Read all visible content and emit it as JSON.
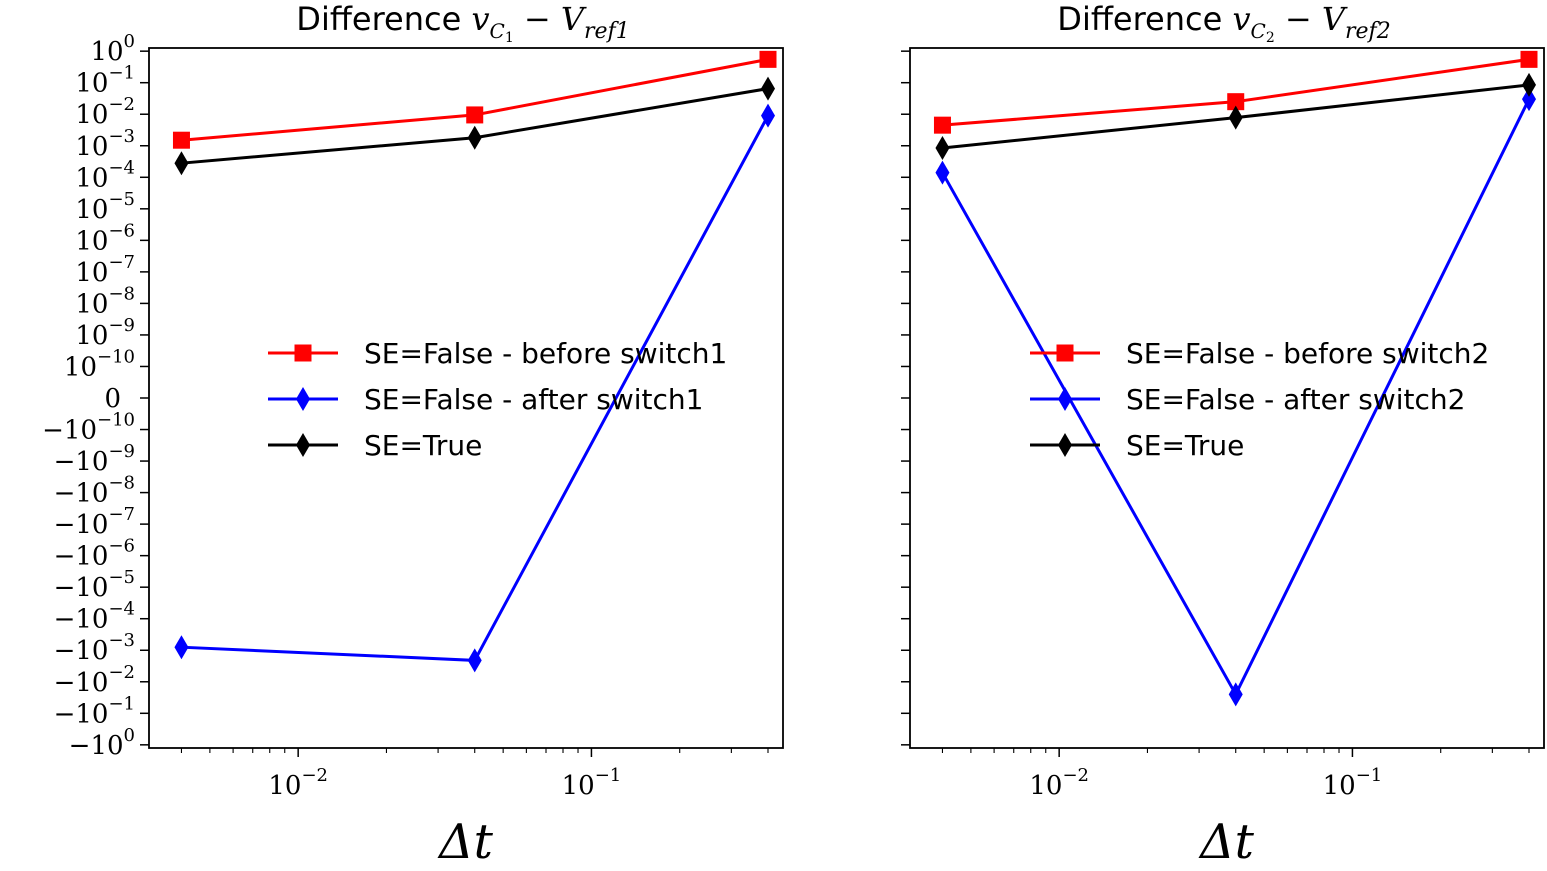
{
  "chart_data": [
    {
      "type": "line",
      "title_prefix": "Difference",
      "title_math": {
        "v": "v",
        "vsub": "C",
        "vsub2": "1",
        "minus": "−",
        "V": "V",
        "Vsub": "ref1"
      },
      "xlabel": "Δt",
      "x_scale": "log",
      "y_scale": "symlog",
      "y_linthresh": 1e-10,
      "xlim": [
        0.0031,
        0.45
      ],
      "ylim": [
        -1.26,
        1.26
      ],
      "x_ticks": [
        {
          "value": 0.01,
          "base": "10",
          "exp": "−2"
        },
        {
          "value": 0.1,
          "base": "10",
          "exp": "−1"
        }
      ],
      "y_ticks_pos": [
        {
          "label": "10",
          "exp": "0"
        },
        {
          "label": "10",
          "exp": "−1"
        },
        {
          "label": "10",
          "exp": "−2"
        },
        {
          "label": "10",
          "exp": "−3"
        },
        {
          "label": "10",
          "exp": "−4"
        },
        {
          "label": "10",
          "exp": "−5"
        },
        {
          "label": "10",
          "exp": "−6"
        },
        {
          "label": "10",
          "exp": "−7"
        },
        {
          "label": "10",
          "exp": "−8"
        },
        {
          "label": "10",
          "exp": "−9"
        },
        {
          "label": "10",
          "exp": "−10"
        }
      ],
      "y_tick_zero": "0",
      "y_ticks_neg": [
        {
          "label": "−10",
          "exp": "−10"
        },
        {
          "label": "−10",
          "exp": "−9"
        },
        {
          "label": "−10",
          "exp": "−8"
        },
        {
          "label": "−10",
          "exp": "−7"
        },
        {
          "label": "−10",
          "exp": "−6"
        },
        {
          "label": "−10",
          "exp": "−5"
        },
        {
          "label": "−10",
          "exp": "−4"
        },
        {
          "label": "−10",
          "exp": "−3"
        },
        {
          "label": "−10",
          "exp": "−2"
        },
        {
          "label": "−10",
          "exp": "−1"
        },
        {
          "label": "−10",
          "exp": "0"
        }
      ],
      "show_ytick_labels": true,
      "x": [
        0.004,
        0.04,
        0.4
      ],
      "series": [
        {
          "name": "SE=False - before switch1",
          "color": "#ff0000",
          "marker": "square",
          "values": [
            0.0015,
            0.0095,
            0.55
          ]
        },
        {
          "name": "SE=False - after switch1",
          "color": "#0000ff",
          "marker": "diamond",
          "values": [
            -0.0008,
            -0.0021,
            0.009
          ]
        },
        {
          "name": "SE=True",
          "color": "#000000",
          "marker": "diamond",
          "values": [
            0.00028,
            0.0018,
            0.065
          ]
        }
      ],
      "legend": "center-right"
    },
    {
      "type": "line",
      "title_prefix": "Difference",
      "title_math": {
        "v": "v",
        "vsub": "C",
        "vsub2": "2",
        "minus": "−",
        "V": "V",
        "Vsub": "ref2"
      },
      "xlabel": "Δt",
      "x_scale": "log",
      "y_scale": "symlog",
      "y_linthresh": 1e-10,
      "xlim": [
        0.0031,
        0.45
      ],
      "ylim": [
        -1.26,
        1.26
      ],
      "x_ticks": [
        {
          "value": 0.01,
          "base": "10",
          "exp": "−2"
        },
        {
          "value": 0.1,
          "base": "10",
          "exp": "−1"
        }
      ],
      "show_ytick_labels": false,
      "x": [
        0.004,
        0.04,
        0.4
      ],
      "series": [
        {
          "name": "SE=False - before switch2",
          "color": "#ff0000",
          "marker": "square",
          "values": [
            0.0045,
            0.025,
            0.55
          ]
        },
        {
          "name": "SE=False - after switch2",
          "color": "#0000ff",
          "marker": "diamond",
          "values": [
            0.00014,
            -0.025,
            0.03
          ]
        },
        {
          "name": "SE=True",
          "color": "#000000",
          "marker": "diamond",
          "values": [
            0.00085,
            0.0078,
            0.085
          ]
        }
      ],
      "legend": "center-right"
    }
  ]
}
